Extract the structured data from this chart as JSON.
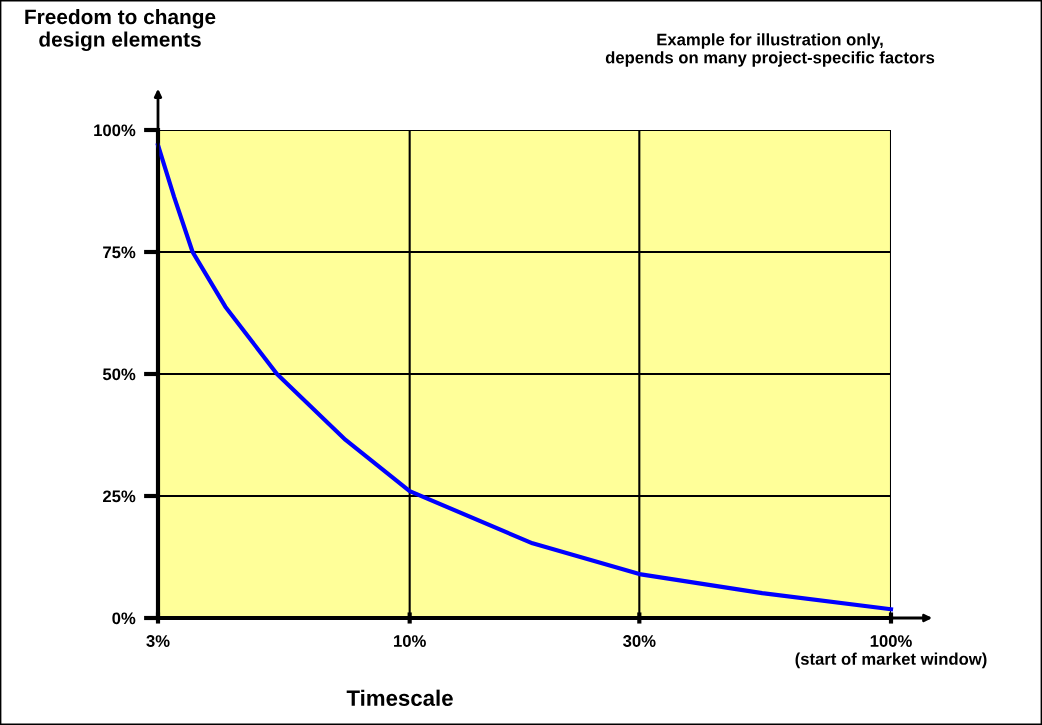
{
  "chart_data": {
    "type": "line",
    "ylabel": "Freedom to change\ndesign elements",
    "xlabel": "Timescale",
    "annotations": [
      "Example for illustration only,\ndepends on many project-specific factors"
    ],
    "x": [
      3,
      3.24,
      3.54,
      4.14,
      5.3,
      7.36,
      10,
      18,
      30,
      54,
      100
    ],
    "series": [
      {
        "color": "#0000ff",
        "values": [
          96.9,
          86.3,
          75,
          63.8,
          50,
          36.5,
          26,
          15.3,
          9.0,
          5.1,
          1.8
        ]
      }
    ],
    "xlim": [
      3,
      100
    ],
    "ylim": [
      0,
      100
    ],
    "log": "x",
    "xticks": [
      {
        "value": 3,
        "label": "3%"
      },
      {
        "value": 10,
        "label": "10%"
      },
      {
        "value": 30,
        "label": "30%"
      },
      {
        "value": 100,
        "label": "100%\n(start of market window)"
      }
    ],
    "yticks": [
      {
        "value": 0,
        "label": "0%"
      },
      {
        "value": 25,
        "label": "25%"
      },
      {
        "value": 50,
        "label": "50%"
      },
      {
        "value": 75,
        "label": "75%"
      },
      {
        "value": 100,
        "label": "100%"
      }
    ],
    "grid": true,
    "marker": "none",
    "line_style": "solid"
  }
}
